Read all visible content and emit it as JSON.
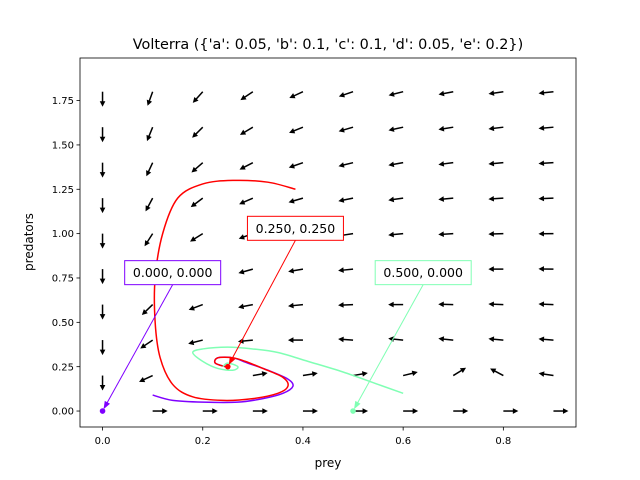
{
  "chart_data": {
    "type": "quiver",
    "title": "Volterra ({'a': 0.05, 'b': 0.1, 'c': 0.1, 'd': 0.05, 'e': 0.2})",
    "xlabel": "prey",
    "ylabel": "predators",
    "xlim": [
      -0.045,
      0.945
    ],
    "ylim": [
      -0.09,
      1.99
    ],
    "grid": false,
    "xticks": [
      0.0,
      0.2,
      0.4,
      0.6,
      0.8
    ],
    "xtick_labels": [
      "0.0",
      "0.2",
      "0.4",
      "0.6",
      "0.8"
    ],
    "yticks": [
      0.0,
      0.25,
      0.5,
      0.75,
      1.0,
      1.25,
      1.5,
      1.75
    ],
    "ytick_labels": [
      "0.00",
      "0.25",
      "0.50",
      "0.75",
      "1.00",
      "1.25",
      "1.50",
      "1.75"
    ],
    "quiver": {
      "x_grid": [
        0.0,
        0.1,
        0.2,
        0.3,
        0.4,
        0.5,
        0.6,
        0.7,
        0.8,
        0.9
      ],
      "y_grid": [
        0.0,
        0.2,
        0.4,
        0.6,
        0.8,
        1.0,
        1.2,
        1.4,
        1.6,
        1.8
      ],
      "params": {
        "a": 0.05,
        "b": 0.1,
        "c": 0.1,
        "d": 0.05,
        "e": 0.2
      },
      "color": "#000000"
    },
    "trajectories": [
      {
        "start": [
          0.0,
          0.0
        ],
        "color": "#7f00ff",
        "label": "0.000, 0.000",
        "label_pos": [
          0.14,
          0.78
        ]
      },
      {
        "start": [
          0.25,
          0.25
        ],
        "color": "#ff0000",
        "label": "0.250, 0.250",
        "label_pos": [
          0.385,
          1.03
        ]
      },
      {
        "start": [
          0.5,
          0.0
        ],
        "color": "#80ffb4",
        "label": "0.500, 0.000",
        "label_pos": [
          0.64,
          0.78
        ]
      }
    ],
    "curves": [
      {
        "color": "#7f00ff",
        "points": [
          [
            0.1,
            0.09
          ],
          [
            0.14,
            0.06
          ],
          [
            0.2,
            0.05
          ],
          [
            0.27,
            0.05
          ],
          [
            0.32,
            0.07
          ],
          [
            0.36,
            0.1
          ],
          [
            0.38,
            0.14
          ],
          [
            0.37,
            0.18
          ],
          [
            0.33,
            0.23
          ],
          [
            0.29,
            0.27
          ],
          [
            0.26,
            0.3
          ],
          [
            0.23,
            0.3
          ],
          [
            0.225,
            0.27
          ],
          [
            0.245,
            0.25
          ]
        ]
      },
      {
        "color": "#ff0000",
        "points": [
          [
            0.385,
            1.25
          ],
          [
            0.33,
            1.29
          ],
          [
            0.26,
            1.3
          ],
          [
            0.2,
            1.28
          ],
          [
            0.15,
            1.2
          ],
          [
            0.12,
            1.0
          ],
          [
            0.105,
            0.75
          ],
          [
            0.105,
            0.5
          ],
          [
            0.115,
            0.3
          ],
          [
            0.14,
            0.15
          ],
          [
            0.18,
            0.08
          ],
          [
            0.24,
            0.06
          ],
          [
            0.3,
            0.07
          ],
          [
            0.35,
            0.1
          ],
          [
            0.37,
            0.14
          ],
          [
            0.36,
            0.19
          ],
          [
            0.32,
            0.24
          ],
          [
            0.285,
            0.28
          ],
          [
            0.26,
            0.3
          ],
          [
            0.23,
            0.3
          ],
          [
            0.225,
            0.27
          ],
          [
            0.245,
            0.25
          ]
        ]
      },
      {
        "color": "#80ffb4",
        "points": [
          [
            0.6,
            0.1
          ],
          [
            0.55,
            0.15
          ],
          [
            0.48,
            0.22
          ],
          [
            0.41,
            0.28
          ],
          [
            0.35,
            0.33
          ],
          [
            0.3,
            0.35
          ],
          [
            0.25,
            0.36
          ],
          [
            0.2,
            0.35
          ],
          [
            0.18,
            0.33
          ],
          [
            0.2,
            0.28
          ],
          [
            0.23,
            0.24
          ],
          [
            0.26,
            0.23
          ],
          [
            0.27,
            0.25
          ],
          [
            0.25,
            0.27
          ],
          [
            0.24,
            0.25
          ]
        ]
      }
    ]
  }
}
